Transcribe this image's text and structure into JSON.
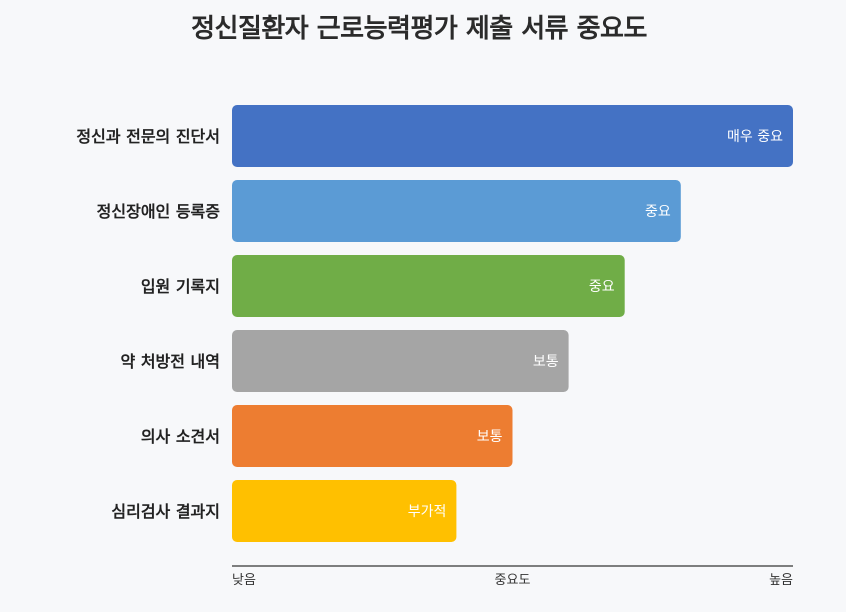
{
  "chart_data": {
    "type": "bar",
    "orientation": "horizontal",
    "title": "정신질환자 근로능력평가 제출 서류 중요도",
    "categories": [
      "정신과 전문의 진단서",
      "정신장애인 등록증",
      "입원 기록지",
      "약 처방전 내역",
      "의사 소견서",
      "심리검사 결과지"
    ],
    "values": [
      10,
      8,
      7,
      6,
      5,
      4
    ],
    "value_labels": [
      "매우 중요",
      "중요",
      "중요",
      "보통",
      "보통",
      "부가적"
    ],
    "xlim": [
      0,
      10
    ],
    "x_ticks": [
      {
        "value": 0,
        "label": "낮음"
      },
      {
        "value": 5,
        "label": "중요도"
      },
      {
        "value": 10,
        "label": "높음"
      }
    ],
    "colors": [
      "#4472c4",
      "#5b9bd5",
      "#70ad47",
      "#a5a5a5",
      "#ed7d31",
      "#ffc000"
    ],
    "grid": false,
    "legend": "none"
  }
}
